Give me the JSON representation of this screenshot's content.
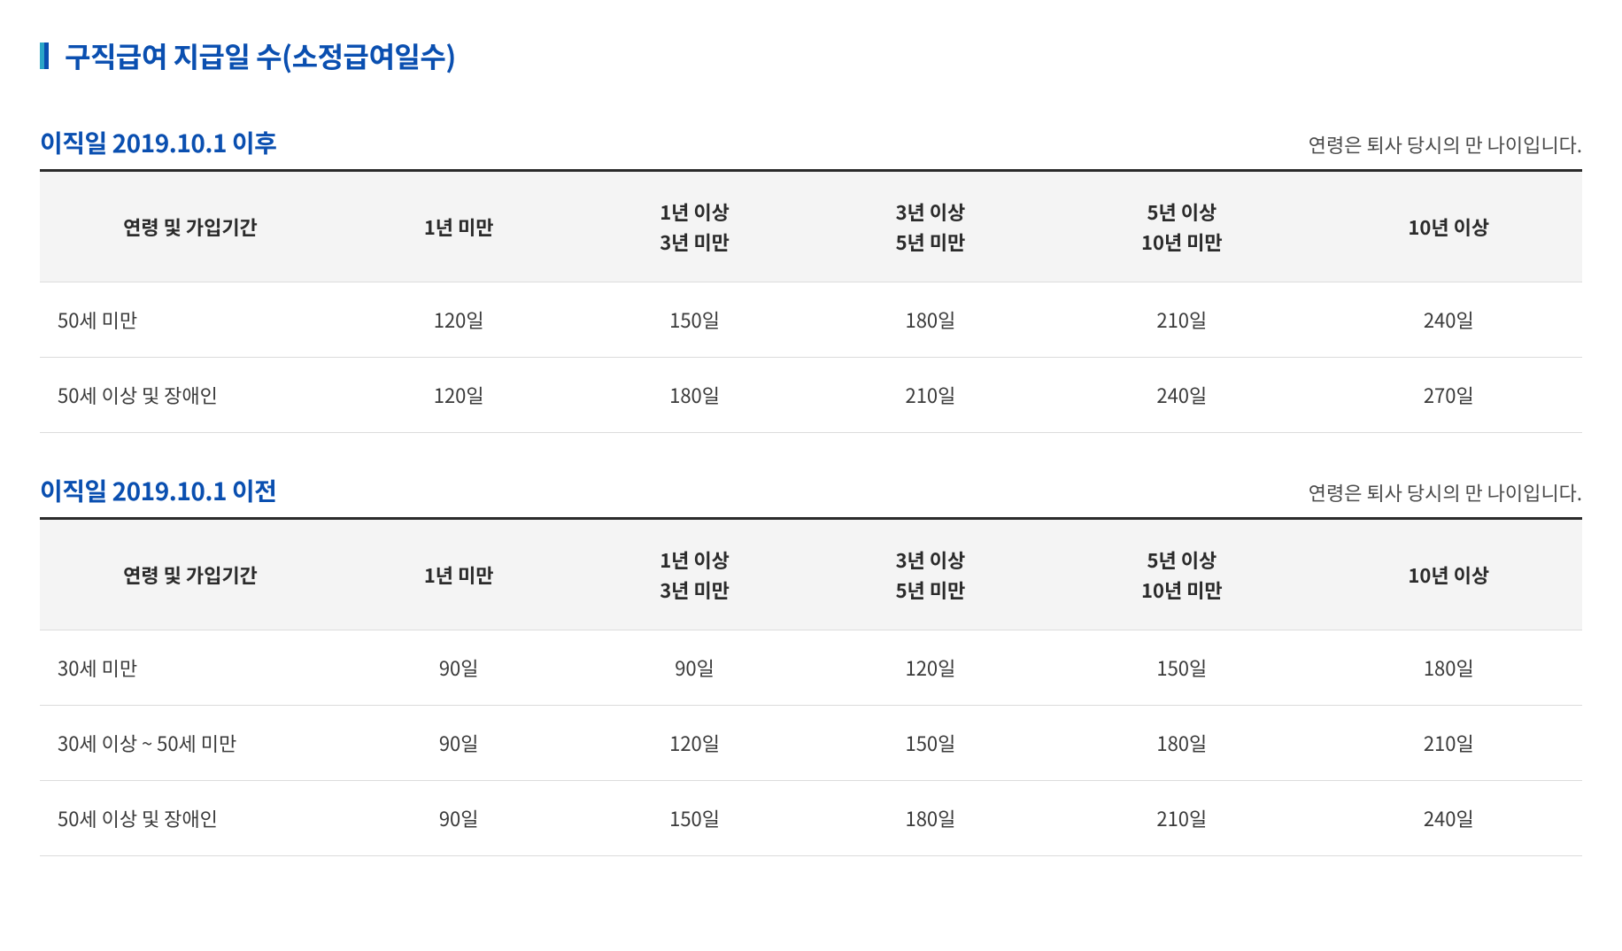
{
  "title": "구직급여 지급일 수(소정급여일수)",
  "sections": [
    {
      "title": "이직일 2019.10.1 이후",
      "note": "연령은 퇴사 당시의 만 나이입니다.",
      "columns": [
        "연령 및 가입기간",
        "1년 미만",
        "1년 이상\n3년 미만",
        "3년 이상\n5년 미만",
        "5년 이상\n10년 미만",
        "10년 이상"
      ],
      "rows": [
        [
          "50세 미만",
          "120일",
          "150일",
          "180일",
          "210일",
          "240일"
        ],
        [
          "50세 이상 및 장애인",
          "120일",
          "180일",
          "210일",
          "240일",
          "270일"
        ]
      ]
    },
    {
      "title": "이직일 2019.10.1 이전",
      "note": "연령은 퇴사 당시의 만 나이입니다.",
      "columns": [
        "연령 및 가입기간",
        "1년 미만",
        "1년 이상\n3년 미만",
        "3년 이상\n5년 미만",
        "5년 이상\n10년 미만",
        "10년 이상"
      ],
      "rows": [
        [
          "30세 미만",
          "90일",
          "90일",
          "120일",
          "150일",
          "180일"
        ],
        [
          "30세 이상 ~ 50세 미만",
          "90일",
          "120일",
          "150일",
          "180일",
          "210일"
        ],
        [
          "50세 이상 및 장애인",
          "90일",
          "150일",
          "180일",
          "210일",
          "240일"
        ]
      ]
    }
  ],
  "colors": {
    "title_color": "#0a4fb0",
    "marker_left": "#2aa5c7",
    "marker_right": "#0a4fb0",
    "border_top": "#2b2b2b",
    "border_row": "#dcdcdc",
    "header_bg": "#f4f4f4",
    "text": "#333333",
    "note_text": "#4a4a4a"
  },
  "typography": {
    "title_fontsize": 32,
    "section_title_fontsize": 28,
    "note_fontsize": 22,
    "table_header_fontsize": 22,
    "table_cell_fontsize": 22
  }
}
